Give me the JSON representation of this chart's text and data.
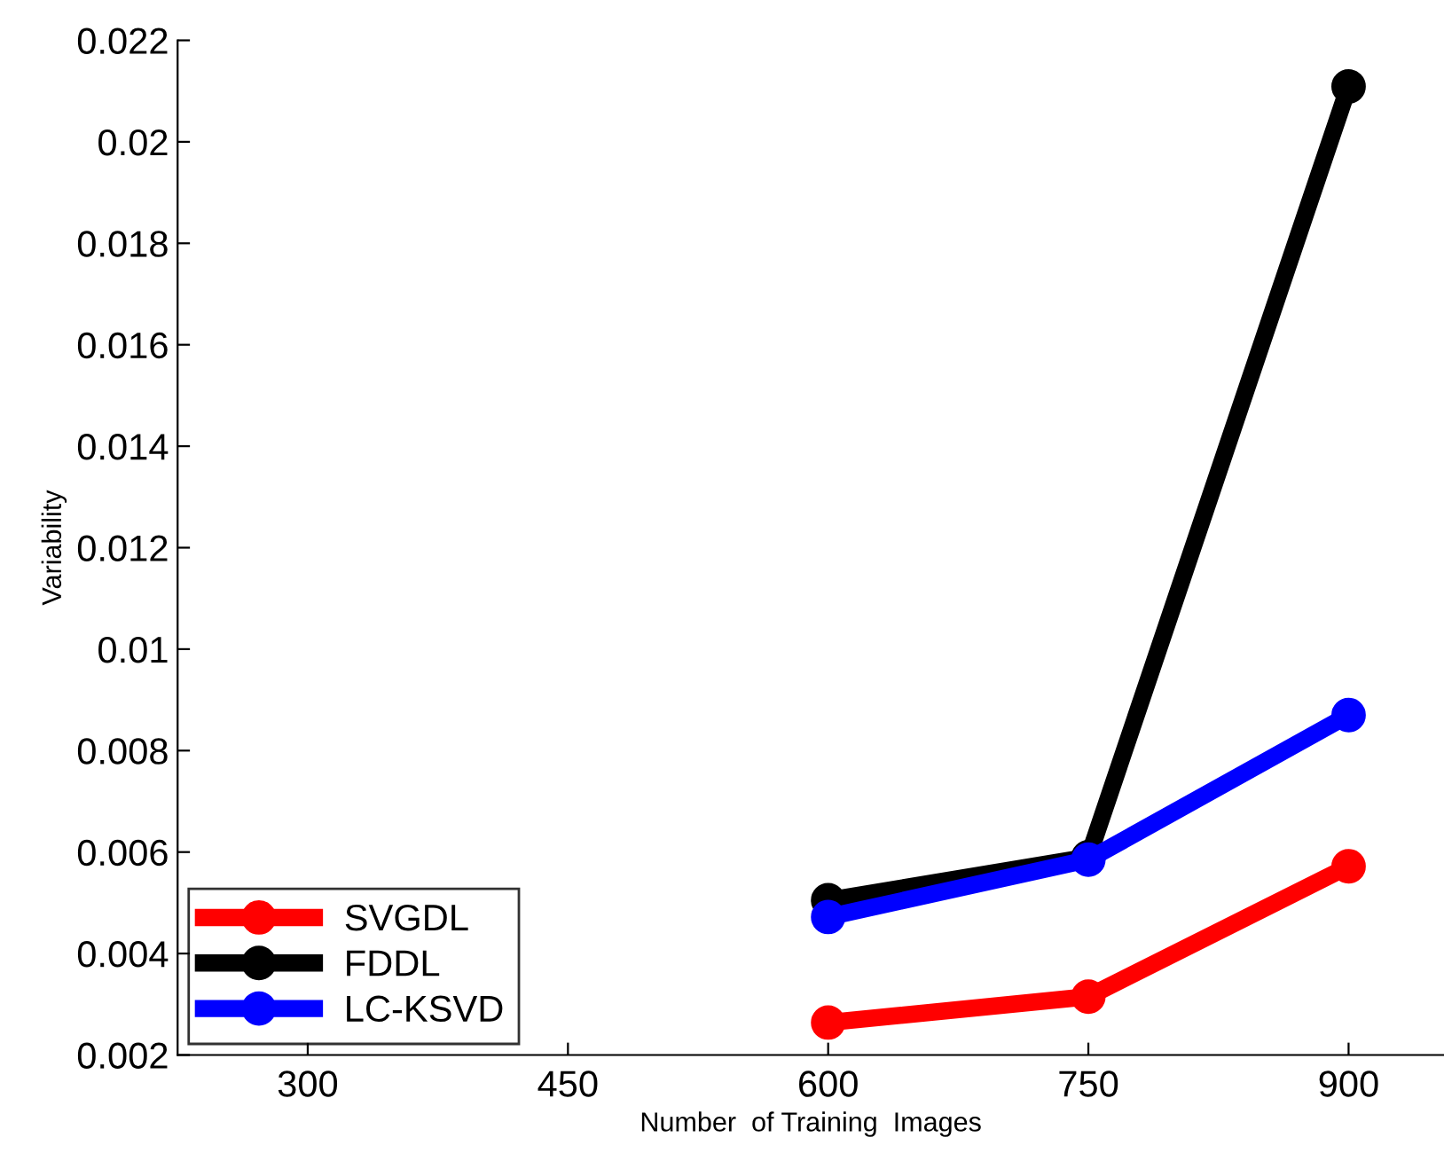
{
  "chart_data": {
    "type": "line",
    "xlabel": "Number  of Training  Images",
    "ylabel": "Variability",
    "x": [
      600,
      750,
      900
    ],
    "series": [
      {
        "name": "SVGDL",
        "color": "#ff0000",
        "values": [
          0.00264,
          0.00315,
          0.00572
        ]
      },
      {
        "name": "FDDL",
        "color": "#000000",
        "values": [
          0.00505,
          0.0059,
          0.02109
        ]
      },
      {
        "name": "LC-KSVD",
        "color": "#0000ff",
        "values": [
          0.00472,
          0.00585,
          0.0087
        ]
      }
    ],
    "xlim": [
      225,
      955
    ],
    "xticks": [
      300,
      450,
      600,
      750,
      900
    ],
    "ylim": [
      0.002,
      0.022
    ],
    "yticks": [
      0.002,
      0.004,
      0.006,
      0.008,
      0.01,
      0.012,
      0.014,
      0.016,
      0.018,
      0.02,
      0.022
    ],
    "grid": false,
    "legend": "bottom left",
    "marker": "circle",
    "line_style": "solid"
  }
}
